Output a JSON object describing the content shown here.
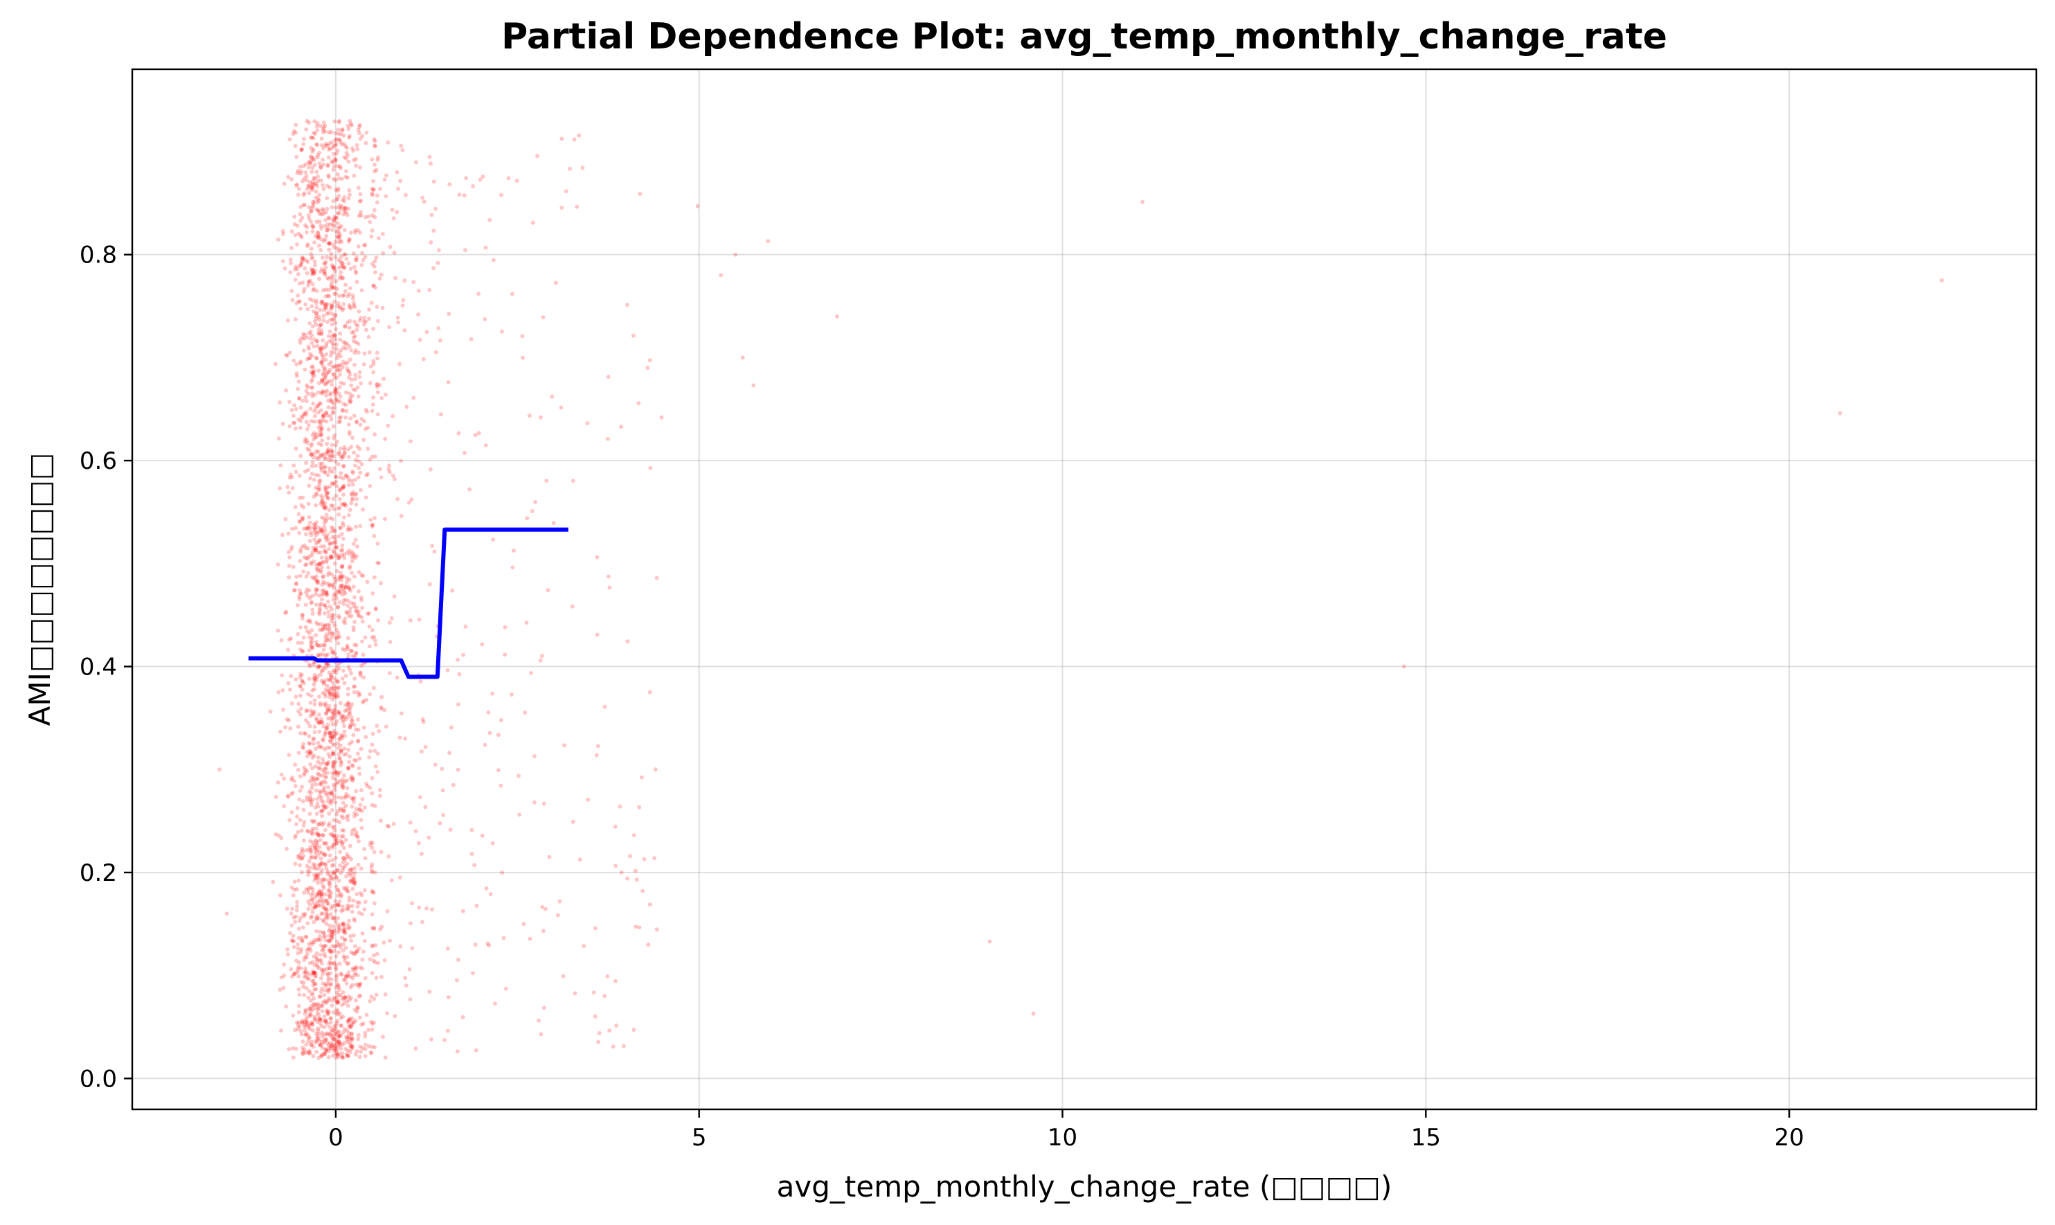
{
  "chart_data": {
    "type": "scatter",
    "title": "Partial Dependence Plot: avg_temp_monthly_change_rate",
    "xlabel": "avg_temp_monthly_change_rate (□□□□)",
    "ylabel": "AMI□□□□□□□□",
    "xlim": [
      -2.8,
      23.4
    ],
    "ylim": [
      -0.03,
      0.98
    ],
    "x_ticks": [
      0,
      5,
      10,
      15,
      20
    ],
    "y_ticks": [
      0.0,
      0.2,
      0.4,
      0.6,
      0.8
    ],
    "grid": true,
    "colors": {
      "scatter": "#ff0000",
      "pdp_line": "#0000ff"
    },
    "series": [
      {
        "kind": "line",
        "x": [
          -1.2,
          -0.3,
          -0.25,
          0.9,
          1.0,
          1.4,
          1.5,
          3.2
        ],
        "y": [
          0.408,
          0.408,
          0.406,
          0.406,
          0.39,
          0.39,
          0.533,
          0.533
        ]
      },
      {
        "kind": "scatter",
        "cluster": {
          "x_center": -0.1,
          "x_spread": 0.55,
          "y_range": [
            0.02,
            0.93
          ],
          "point_count": 3200
        },
        "tail": {
          "x_range": [
            0.5,
            4.5
          ],
          "y_range": [
            0.02,
            0.92
          ],
          "point_count": 420
        },
        "outliers": [
          {
            "x": 4.98,
            "y": 0.847
          },
          {
            "x": 5.3,
            "y": 0.78
          },
          {
            "x": 5.5,
            "y": 0.8
          },
          {
            "x": 5.95,
            "y": 0.813
          },
          {
            "x": 5.6,
            "y": 0.7
          },
          {
            "x": 5.75,
            "y": 0.673
          },
          {
            "x": 6.9,
            "y": 0.74
          },
          {
            "x": 9.0,
            "y": 0.133
          },
          {
            "x": 9.6,
            "y": 0.063
          },
          {
            "x": 11.1,
            "y": 0.851
          },
          {
            "x": 14.7,
            "y": 0.4
          },
          {
            "x": 20.7,
            "y": 0.646
          },
          {
            "x": 22.1,
            "y": 0.775
          },
          {
            "x": -1.6,
            "y": 0.3
          },
          {
            "x": -1.5,
            "y": 0.16
          },
          {
            "x": 3.7,
            "y": 0.08
          },
          {
            "x": 4.3,
            "y": 0.13
          },
          {
            "x": 4.4,
            "y": 0.3
          }
        ]
      }
    ]
  }
}
